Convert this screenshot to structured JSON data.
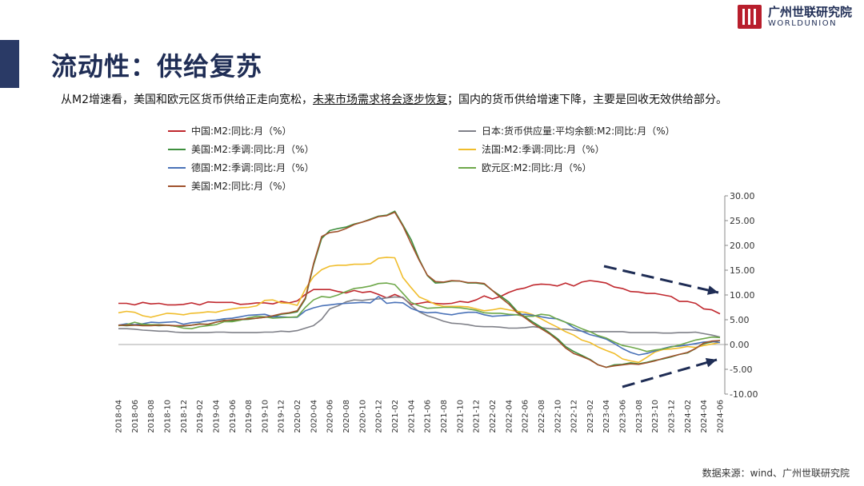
{
  "page": {
    "title": "流动性：供给复苏",
    "subtitle_1": "从M2增速看，美国和欧元区货币供给正走向宽松，",
    "subtitle_2": "未来市场需求将会逐步恢复",
    "subtitle_3": "；国内的货币供给增速下降，主要是回收无效供给部分。",
    "source": "数据来源：wind、广州世联研究院"
  },
  "logo": {
    "name_cn": "广州世联研究院",
    "name_en": "WORLDUNION",
    "brand_color": "#b81e2c"
  },
  "chart_data": {
    "type": "line",
    "x": [
      "2018-04",
      "2018-05",
      "2018-06",
      "2018-07",
      "2018-08",
      "2018-09",
      "2018-10",
      "2018-11",
      "2018-12",
      "2019-01",
      "2019-02",
      "2019-03",
      "2019-04",
      "2019-05",
      "2019-06",
      "2019-07",
      "2019-08",
      "2019-09",
      "2019-10",
      "2019-11",
      "2019-12",
      "2020-01",
      "2020-02",
      "2020-03",
      "2020-04",
      "2020-05",
      "2020-06",
      "2020-07",
      "2020-08",
      "2020-09",
      "2020-10",
      "2020-11",
      "2020-12",
      "2021-01",
      "2021-02",
      "2021-03",
      "2021-04",
      "2021-05",
      "2021-06",
      "2021-07",
      "2021-08",
      "2021-09",
      "2021-10",
      "2021-11",
      "2021-12",
      "2022-01",
      "2022-02",
      "2022-03",
      "2022-04",
      "2022-05",
      "2022-06",
      "2022-07",
      "2022-08",
      "2022-09",
      "2022-10",
      "2022-11",
      "2022-12",
      "2023-01",
      "2023-02",
      "2023-03",
      "2023-04",
      "2023-05",
      "2023-06",
      "2023-07",
      "2023-08",
      "2023-09",
      "2023-10",
      "2023-11",
      "2023-12",
      "2024-01",
      "2024-02",
      "2024-03",
      "2024-04",
      "2024-05",
      "2024-06"
    ],
    "x_tick_labels": [
      "2018-04",
      "2018-06",
      "2018-08",
      "2018-10",
      "2018-12",
      "2019-02",
      "2019-04",
      "2019-06",
      "2019-08",
      "2019-10",
      "2019-12",
      "2020-02",
      "2020-04",
      "2020-06",
      "2020-08",
      "2020-10",
      "2020-12",
      "2021-02",
      "2021-04",
      "2021-06",
      "2021-08",
      "2021-10",
      "2021-12",
      "2022-02",
      "2022-04",
      "2022-06",
      "2022-08",
      "2022-10",
      "2022-12",
      "2023-02",
      "2023-04",
      "2023-06",
      "2023-08",
      "2023-10",
      "2023-12",
      "2024-02",
      "2024-04",
      "2024-06"
    ],
    "y_ticks": [
      "30.00",
      "25.00",
      "20.00",
      "15.00",
      "10.00",
      "5.00",
      "0.00",
      "-5.00",
      "-10.00"
    ],
    "ylim": [
      -10,
      30
    ],
    "y_axis_position": "right",
    "grid": false,
    "legend_position": "top",
    "series": [
      {
        "name": "中国:M2:同比:月（%）",
        "color": "#c0282e",
        "values": [
          8.3,
          8.3,
          8.0,
          8.5,
          8.2,
          8.3,
          8.0,
          8.0,
          8.1,
          8.4,
          8.0,
          8.6,
          8.5,
          8.5,
          8.5,
          8.1,
          8.2,
          8.4,
          8.4,
          8.2,
          8.7,
          8.4,
          8.8,
          10.1,
          11.1,
          11.1,
          11.1,
          10.7,
          10.4,
          10.9,
          10.5,
          10.7,
          10.1,
          9.4,
          10.1,
          9.4,
          8.1,
          8.3,
          8.6,
          8.3,
          8.2,
          8.3,
          8.7,
          8.5,
          9.0,
          9.8,
          9.2,
          9.7,
          10.5,
          11.1,
          11.4,
          12.0,
          12.2,
          12.1,
          11.8,
          12.4,
          11.8,
          12.6,
          12.9,
          12.7,
          12.4,
          11.6,
          11.3,
          10.7,
          10.6,
          10.3,
          10.3,
          10.0,
          9.7,
          8.7,
          8.7,
          8.3,
          7.2,
          7.0,
          6.2
        ]
      },
      {
        "name": "日本:货币供应量:平均余额:M2:同比:月（%）",
        "color": "#7f8088",
        "values": [
          3.2,
          3.2,
          3.1,
          2.9,
          2.8,
          2.7,
          2.7,
          2.5,
          2.4,
          2.4,
          2.4,
          2.4,
          2.5,
          2.5,
          2.4,
          2.4,
          2.4,
          2.4,
          2.5,
          2.5,
          2.7,
          2.6,
          2.8,
          3.3,
          3.8,
          5.1,
          7.2,
          7.8,
          8.6,
          9.0,
          8.9,
          9.1,
          9.2,
          9.4,
          9.6,
          9.5,
          7.9,
          6.6,
          5.8,
          5.3,
          4.7,
          4.3,
          4.2,
          4.0,
          3.7,
          3.6,
          3.6,
          3.5,
          3.3,
          3.3,
          3.4,
          3.6,
          3.4,
          3.2,
          3.1,
          3.1,
          2.9,
          2.7,
          2.6,
          2.6,
          2.6,
          2.6,
          2.6,
          2.4,
          2.4,
          2.4,
          2.4,
          2.3,
          2.3,
          2.4,
          2.4,
          2.5,
          2.2,
          1.9,
          1.5
        ]
      },
      {
        "name": "美国:M2:季调:同比:月（%）",
        "color": "#3e8f3e",
        "values": [
          3.9,
          3.8,
          3.9,
          4.0,
          3.9,
          3.8,
          3.9,
          3.7,
          3.7,
          3.9,
          4.2,
          4.0,
          4.5,
          4.9,
          4.8,
          5.0,
          5.1,
          5.3,
          5.5,
          5.6,
          6.1,
          6.3,
          6.6,
          9.2,
          16.0,
          21.4,
          23.0,
          23.4,
          23.7,
          24.3,
          24.7,
          25.3,
          25.9,
          26.1,
          26.9,
          24.1,
          21.2,
          17.2,
          13.9,
          12.4,
          12.5,
          12.8,
          12.8,
          12.4,
          12.4,
          12.2,
          10.9,
          9.8,
          8.6,
          6.8,
          5.6,
          4.5,
          3.5,
          2.4,
          1.2,
          -0.4,
          -1.4,
          -2.2,
          -3.0,
          -4.1,
          -4.6,
          -4.1,
          -4.0,
          -3.7,
          -3.9,
          -3.6,
          -3.2,
          -2.9,
          -2.5,
          -2.0,
          -1.7,
          -0.8,
          0.2,
          0.5,
          0.8
        ]
      },
      {
        "name": "法国:M2:季调:同比:月（%）",
        "color": "#f0bd2c",
        "values": [
          6.4,
          6.7,
          6.5,
          5.8,
          5.5,
          5.9,
          6.3,
          6.2,
          6.0,
          6.3,
          6.4,
          6.6,
          6.5,
          6.9,
          7.2,
          7.4,
          7.5,
          7.8,
          8.9,
          9.0,
          8.4,
          8.3,
          7.9,
          11.2,
          13.7,
          15.1,
          15.8,
          16.0,
          16.0,
          16.2,
          16.2,
          16.3,
          17.4,
          17.6,
          17.5,
          13.5,
          11.5,
          9.6,
          8.9,
          8.1,
          7.7,
          7.7,
          7.7,
          7.6,
          7.2,
          6.8,
          7.0,
          7.3,
          7.0,
          6.7,
          6.5,
          6.0,
          5.2,
          4.3,
          3.5,
          2.6,
          1.9,
          0.9,
          0.4,
          -0.5,
          -1.2,
          -1.8,
          -2.9,
          -3.3,
          -3.6,
          -2.6,
          -1.5,
          -1.0,
          -0.9,
          -0.7,
          -0.4,
          -0.6,
          -0.2,
          0.1,
          0.4
        ]
      },
      {
        "name": "德国:M2:季调:同比:月（%）",
        "color": "#4a72b8",
        "values": [
          3.9,
          4.2,
          4.0,
          4.2,
          4.5,
          4.4,
          4.5,
          4.6,
          4.1,
          4.4,
          4.5,
          4.8,
          4.9,
          5.2,
          5.3,
          5.6,
          5.9,
          6.0,
          6.1,
          5.6,
          5.6,
          5.5,
          5.5,
          6.8,
          7.4,
          7.8,
          8.0,
          8.2,
          8.3,
          8.4,
          8.5,
          8.4,
          9.7,
          8.3,
          8.5,
          8.4,
          7.3,
          6.7,
          6.4,
          6.5,
          6.2,
          6.0,
          6.3,
          6.5,
          6.5,
          6.0,
          5.7,
          5.8,
          5.9,
          6.0,
          6.1,
          5.9,
          5.6,
          5.3,
          5.2,
          4.5,
          3.4,
          2.7,
          2.0,
          1.6,
          1.1,
          0.2,
          -0.8,
          -1.6,
          -2.1,
          -1.8,
          -1.3,
          -0.8,
          -0.4,
          -0.3,
          -0.1,
          0.2,
          0.5,
          0.6,
          0.4
        ]
      },
      {
        "name": "欧元区:M2:同比:月（%）",
        "color": "#6ea84a",
        "values": [
          3.8,
          4.0,
          4.5,
          4.1,
          4.0,
          4.0,
          3.9,
          3.7,
          3.3,
          3.2,
          3.6,
          3.8,
          4.0,
          4.6,
          4.6,
          4.9,
          5.4,
          5.7,
          5.6,
          5.3,
          5.4,
          5.5,
          5.6,
          7.5,
          9.0,
          9.7,
          9.5,
          10.0,
          10.7,
          11.3,
          11.5,
          11.8,
          12.3,
          12.4,
          12.1,
          10.3,
          8.5,
          7.8,
          7.3,
          7.4,
          7.5,
          7.5,
          7.4,
          7.2,
          6.9,
          6.4,
          6.3,
          6.3,
          6.1,
          6.0,
          5.7,
          5.7,
          6.1,
          5.9,
          5.1,
          4.5,
          3.9,
          3.2,
          2.6,
          1.8,
          1.3,
          0.5,
          -0.2,
          -0.5,
          -0.9,
          -1.4,
          -1.1,
          -0.9,
          -0.5,
          -0.1,
          0.4,
          0.9,
          1.2,
          1.5,
          1.4
        ]
      },
      {
        "name": "美国:M2:同比:月（%）",
        "color": "#a0522d",
        "values": [
          3.9,
          3.9,
          3.9,
          3.8,
          3.8,
          3.9,
          3.9,
          3.8,
          3.8,
          3.9,
          4.1,
          4.1,
          4.5,
          4.8,
          5.0,
          5.1,
          5.2,
          5.3,
          5.5,
          5.8,
          6.2,
          6.4,
          6.8,
          9.4,
          16.3,
          21.8,
          22.6,
          22.8,
          23.4,
          24.2,
          24.7,
          25.2,
          25.8,
          26.0,
          26.7,
          23.9,
          20.4,
          17.0,
          14.0,
          12.7,
          12.6,
          12.9,
          12.8,
          12.5,
          12.5,
          12.3,
          10.9,
          9.5,
          8.2,
          6.5,
          5.4,
          4.2,
          3.2,
          2.2,
          0.9,
          -0.7,
          -1.8,
          -2.4,
          -3.1,
          -4.1,
          -4.6,
          -4.3,
          -4.1,
          -3.9,
          -4.0,
          -3.7,
          -3.3,
          -2.8,
          -2.4,
          -2.0,
          -1.6,
          -0.8,
          0.3,
          0.7,
          0.8
        ]
      }
    ]
  }
}
